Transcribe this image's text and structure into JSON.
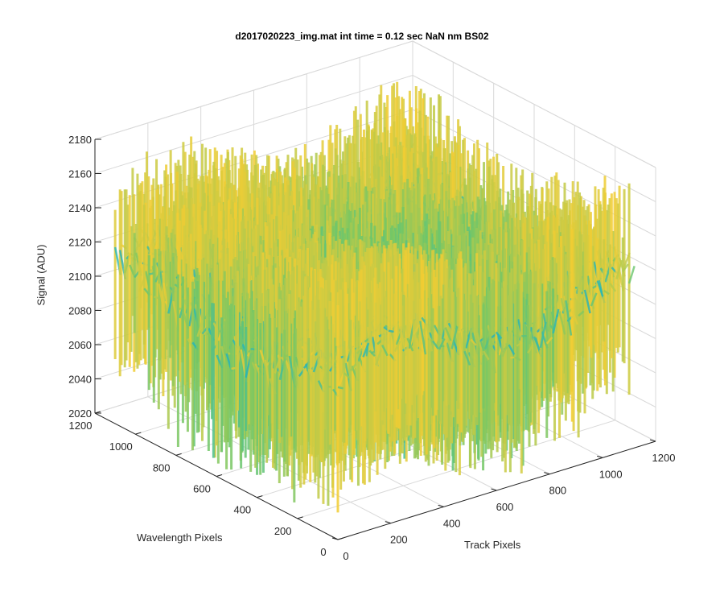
{
  "chart_data": {
    "type": "surface",
    "title": "d2017020223_img.mat int time = 0.12 sec  NaN nm BS02",
    "xlabel": "Track Pixels",
    "ylabel": "Wavelength Pixels",
    "zlabel": "Signal (ADU)",
    "x_ticks": [
      0,
      200,
      400,
      600,
      800,
      1000,
      1200
    ],
    "y_ticks": [
      0,
      200,
      400,
      600,
      800,
      1000,
      1200
    ],
    "z_ticks": [
      2020,
      2040,
      2060,
      2080,
      2100,
      2120,
      2140,
      2160,
      2180
    ],
    "xlim": [
      0,
      1200
    ],
    "ylim": [
      0,
      1200
    ],
    "zlim": [
      2020,
      2180
    ],
    "data_extent": {
      "x": [
        0,
        1100
      ],
      "y": [
        0,
        1100
      ]
    },
    "signal_summary": {
      "typical_min": 2030,
      "typical_max": 2150,
      "peak_max": 2175
    },
    "colormap": "parula",
    "colors": {
      "low": "#0072bd",
      "mid": "#21b0b8",
      "high": "#e6c531",
      "grid": "#d9d9d9",
      "axis": "#262626"
    },
    "grid": true,
    "box": true
  }
}
